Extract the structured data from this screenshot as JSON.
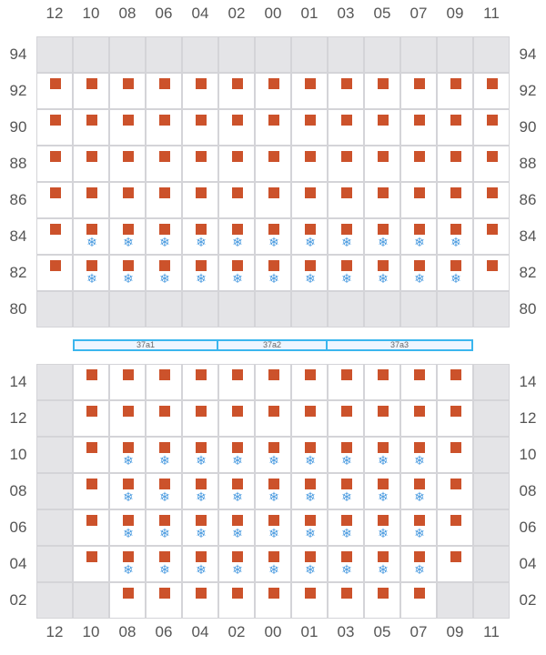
{
  "columns": [
    "12",
    "10",
    "08",
    "06",
    "04",
    "02",
    "00",
    "01",
    "03",
    "05",
    "07",
    "09",
    "11"
  ],
  "colors": {
    "cargo": "#cc522b",
    "reefer": "#4a9be0",
    "empty_slot": "#e4e4e7",
    "hatch_border": "#3bb6ee"
  },
  "legend_codes": {
    "G": "unavailable",
    "E": "empty",
    "C": "container",
    "R": "reefer container"
  },
  "deck": {
    "rows": [
      {
        "tier": "94",
        "cells": "GGGGGGGGGGGGG"
      },
      {
        "tier": "92",
        "cells": "CCCCCCCCCCCCC"
      },
      {
        "tier": "90",
        "cells": "CCCCCCCCCCCCC"
      },
      {
        "tier": "88",
        "cells": "CCCCCCCCCCCCC"
      },
      {
        "tier": "86",
        "cells": "CCCCCCCCCCCCC"
      },
      {
        "tier": "84",
        "cells": "CRRRRRRRRRRRC"
      },
      {
        "tier": "82",
        "cells": "CRRRRRRRRRRRC"
      },
      {
        "tier": "80",
        "cells": "GGGGGGGGGGGGG"
      }
    ]
  },
  "hatch_covers": [
    {
      "label": "37a1",
      "span": 4
    },
    {
      "label": "37a2",
      "span": 3
    },
    {
      "label": "37a3",
      "span": 4
    }
  ],
  "hold": {
    "rows": [
      {
        "tier": "14",
        "cells": "GCCCCCCCCCCCG"
      },
      {
        "tier": "12",
        "cells": "GCCCCCCCCCCCG"
      },
      {
        "tier": "10",
        "cells": "GCRRRRRRRRRCG"
      },
      {
        "tier": "08",
        "cells": "GCRRRRRRRRRCG"
      },
      {
        "tier": "06",
        "cells": "GCRRRRRRRRRCG"
      },
      {
        "tier": "04",
        "cells": "GCRRRRRRRRRCG"
      },
      {
        "tier": "02",
        "cells": "GGCCCCCCCCCGG"
      }
    ]
  }
}
